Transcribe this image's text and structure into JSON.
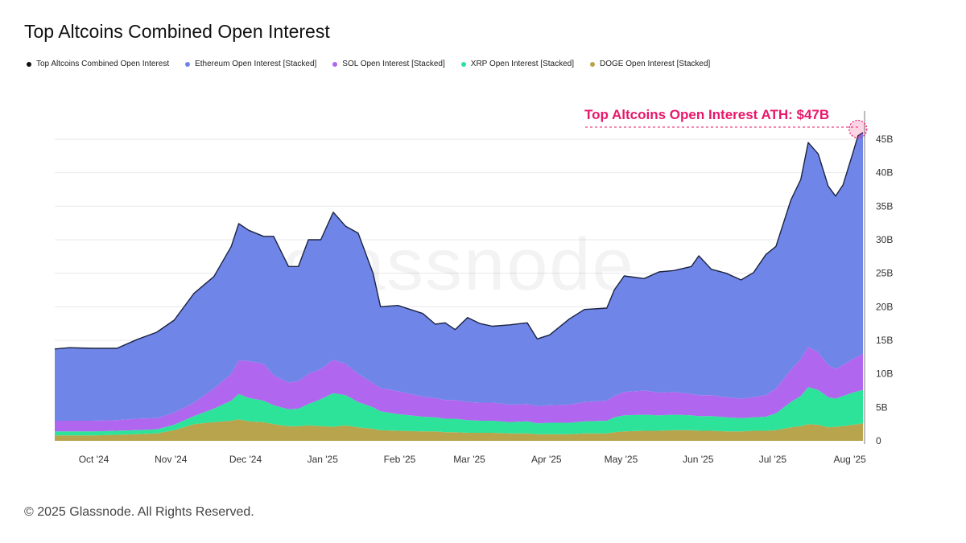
{
  "title": "Top Altcoins Combined Open Interest",
  "footer": "© 2025 Glassnode. All Rights Reserved.",
  "watermark": "glassnode",
  "legend": [
    {
      "label": "Top Altcoins Combined Open Interest",
      "color": "#111111"
    },
    {
      "label": "Ethereum Open Interest [Stacked]",
      "color": "#6f86e8"
    },
    {
      "label": "SOL Open Interest [Stacked]",
      "color": "#b066ee"
    },
    {
      "label": "XRP Open Interest [Stacked]",
      "color": "#2de39a"
    },
    {
      "label": "DOGE Open Interest [Stacked]",
      "color": "#b7a44c"
    }
  ],
  "chart_data": {
    "type": "area",
    "stacked": true,
    "annotation": {
      "text": "Top Altcoins Open Interest ATH: $47B",
      "value": 46.5,
      "color": "#e8186b"
    },
    "x_tick_labels": [
      "Oct '24",
      "Nov '24",
      "Dec '24",
      "Jan '25",
      "Feb '25",
      "Mar '25",
      "Apr '25",
      "May '25",
      "Jun '25",
      "Jul '25",
      "Aug '25"
    ],
    "y_tick_labels": [
      "0",
      "5B",
      "10B",
      "15B",
      "20B",
      "25B",
      "30B",
      "35B",
      "40B",
      "45B"
    ],
    "ylim": [
      0,
      48
    ],
    "ylabel": "",
    "xlabel": "",
    "grid": true,
    "y_axis_side": "right",
    "x_dates": [
      "2024-09-25",
      "2024-10-01",
      "2024-10-10",
      "2024-10-20",
      "2024-10-28",
      "2024-11-05",
      "2024-11-12",
      "2024-11-20",
      "2024-11-28",
      "2024-12-05",
      "2024-12-08",
      "2024-12-12",
      "2024-12-18",
      "2024-12-22",
      "2024-12-28",
      "2025-01-01",
      "2025-01-05",
      "2025-01-10",
      "2025-01-15",
      "2025-01-20",
      "2025-01-25",
      "2025-01-31",
      "2025-02-03",
      "2025-02-10",
      "2025-02-20",
      "2025-02-25",
      "2025-03-01",
      "2025-03-05",
      "2025-03-10",
      "2025-03-15",
      "2025-03-20",
      "2025-03-27",
      "2025-04-03",
      "2025-04-07",
      "2025-04-12",
      "2025-04-20",
      "2025-04-26",
      "2025-05-05",
      "2025-05-08",
      "2025-05-12",
      "2025-05-20",
      "2025-05-26",
      "2025-06-01",
      "2025-06-08",
      "2025-06-11",
      "2025-06-16",
      "2025-06-22",
      "2025-06-28",
      "2025-07-03",
      "2025-07-08",
      "2025-07-12",
      "2025-07-18",
      "2025-07-22",
      "2025-07-25",
      "2025-07-29",
      "2025-08-02",
      "2025-08-05",
      "2025-08-08",
      "2025-08-12",
      "2025-08-14",
      "2025-08-16"
    ],
    "series": [
      {
        "name": "DOGE Open Interest [Stacked]",
        "color": "#b7a44c",
        "values": [
          0.8,
          0.8,
          0.8,
          0.9,
          1.0,
          1.1,
          1.6,
          2.5,
          2.8,
          3.0,
          3.2,
          2.9,
          2.8,
          2.5,
          2.2,
          2.2,
          2.3,
          2.2,
          2.1,
          2.3,
          2.0,
          1.8,
          1.6,
          1.5,
          1.4,
          1.4,
          1.3,
          1.3,
          1.2,
          1.2,
          1.2,
          1.1,
          1.1,
          1.0,
          1.0,
          1.0,
          1.1,
          1.1,
          1.3,
          1.4,
          1.5,
          1.5,
          1.6,
          1.6,
          1.5,
          1.5,
          1.4,
          1.4,
          1.5,
          1.5,
          1.6,
          2.0,
          2.2,
          2.5,
          2.4,
          2.0,
          2.1,
          2.2,
          2.4,
          2.5,
          2.6
        ]
      },
      {
        "name": "XRP Open Interest [Stacked]",
        "color": "#2de39a",
        "values": [
          0.6,
          0.6,
          0.6,
          0.6,
          0.6,
          0.6,
          0.8,
          1.2,
          2.0,
          3.0,
          3.8,
          3.5,
          3.2,
          2.8,
          2.5,
          2.6,
          3.2,
          4.0,
          5.0,
          4.5,
          3.8,
          3.2,
          2.8,
          2.5,
          2.2,
          2.1,
          2.0,
          2.0,
          1.9,
          1.8,
          1.8,
          1.7,
          1.8,
          1.6,
          1.7,
          1.7,
          1.8,
          1.9,
          2.2,
          2.4,
          2.4,
          2.3,
          2.3,
          2.2,
          2.2,
          2.2,
          2.1,
          2.0,
          2.0,
          2.1,
          2.5,
          3.8,
          4.5,
          5.5,
          5.2,
          4.5,
          4.2,
          4.5,
          4.8,
          4.9,
          5.0
        ]
      },
      {
        "name": "SOL Open Interest [Stacked]",
        "color": "#b066ee",
        "values": [
          1.6,
          1.6,
          1.6,
          1.6,
          1.7,
          1.7,
          1.8,
          2.0,
          3.0,
          4.0,
          5.0,
          5.5,
          5.5,
          4.5,
          4.0,
          4.1,
          4.5,
          4.5,
          5.0,
          4.7,
          4.2,
          3.6,
          3.5,
          3.4,
          3.0,
          2.9,
          2.8,
          2.8,
          2.7,
          2.7,
          2.7,
          2.6,
          2.6,
          2.6,
          2.6,
          2.7,
          2.9,
          3.0,
          3.2,
          3.5,
          3.6,
          3.4,
          3.4,
          3.2,
          3.1,
          3.1,
          3.0,
          2.9,
          3.0,
          3.2,
          3.7,
          4.8,
          5.5,
          6.0,
          5.6,
          4.8,
          4.4,
          4.6,
          5.0,
          5.2,
          5.4
        ]
      },
      {
        "name": "Ethereum Open Interest [Stacked]",
        "color": "#6f86e8",
        "values": [
          10.7,
          10.9,
          10.8,
          10.7,
          11.8,
          12.8,
          13.8,
          16.3,
          16.7,
          19.0,
          20.4,
          19.5,
          19.0,
          20.7,
          17.3,
          17.1,
          20.0,
          19.3,
          22.0,
          20.5,
          21.0,
          16.4,
          12.1,
          12.8,
          12.4,
          11.0,
          11.5,
          10.5,
          12.6,
          11.8,
          11.4,
          11.9,
          12.1,
          10.0,
          10.5,
          12.8,
          13.8,
          13.8,
          15.8,
          17.3,
          16.7,
          18.0,
          18.1,
          19.0,
          20.8,
          18.8,
          18.5,
          17.7,
          18.6,
          21.0,
          21.2,
          25.3,
          26.8,
          30.5,
          29.6,
          26.7,
          25.8,
          26.9,
          30.8,
          32.9,
          33.0
        ]
      }
    ],
    "combined_total": [
      13.7,
      13.9,
      13.8,
      13.8,
      15.1,
      16.2,
      18.0,
      22.0,
      24.5,
      29.0,
      32.4,
      31.4,
      30.5,
      30.5,
      26.0,
      26.0,
      30.0,
      30.0,
      34.1,
      32.0,
      31.0,
      25.0,
      20.0,
      20.2,
      19.0,
      17.4,
      17.6,
      16.6,
      18.4,
      17.5,
      17.1,
      17.3,
      17.6,
      15.2,
      15.8,
      18.2,
      19.6,
      19.8,
      22.5,
      24.6,
      24.2,
      25.2,
      25.4,
      26.0,
      27.6,
      25.6,
      25.0,
      24.0,
      25.1,
      27.8,
      29.0,
      35.9,
      39.0,
      44.5,
      42.8,
      38.0,
      36.5,
      38.2,
      43.0,
      45.5,
      46.0
    ]
  }
}
